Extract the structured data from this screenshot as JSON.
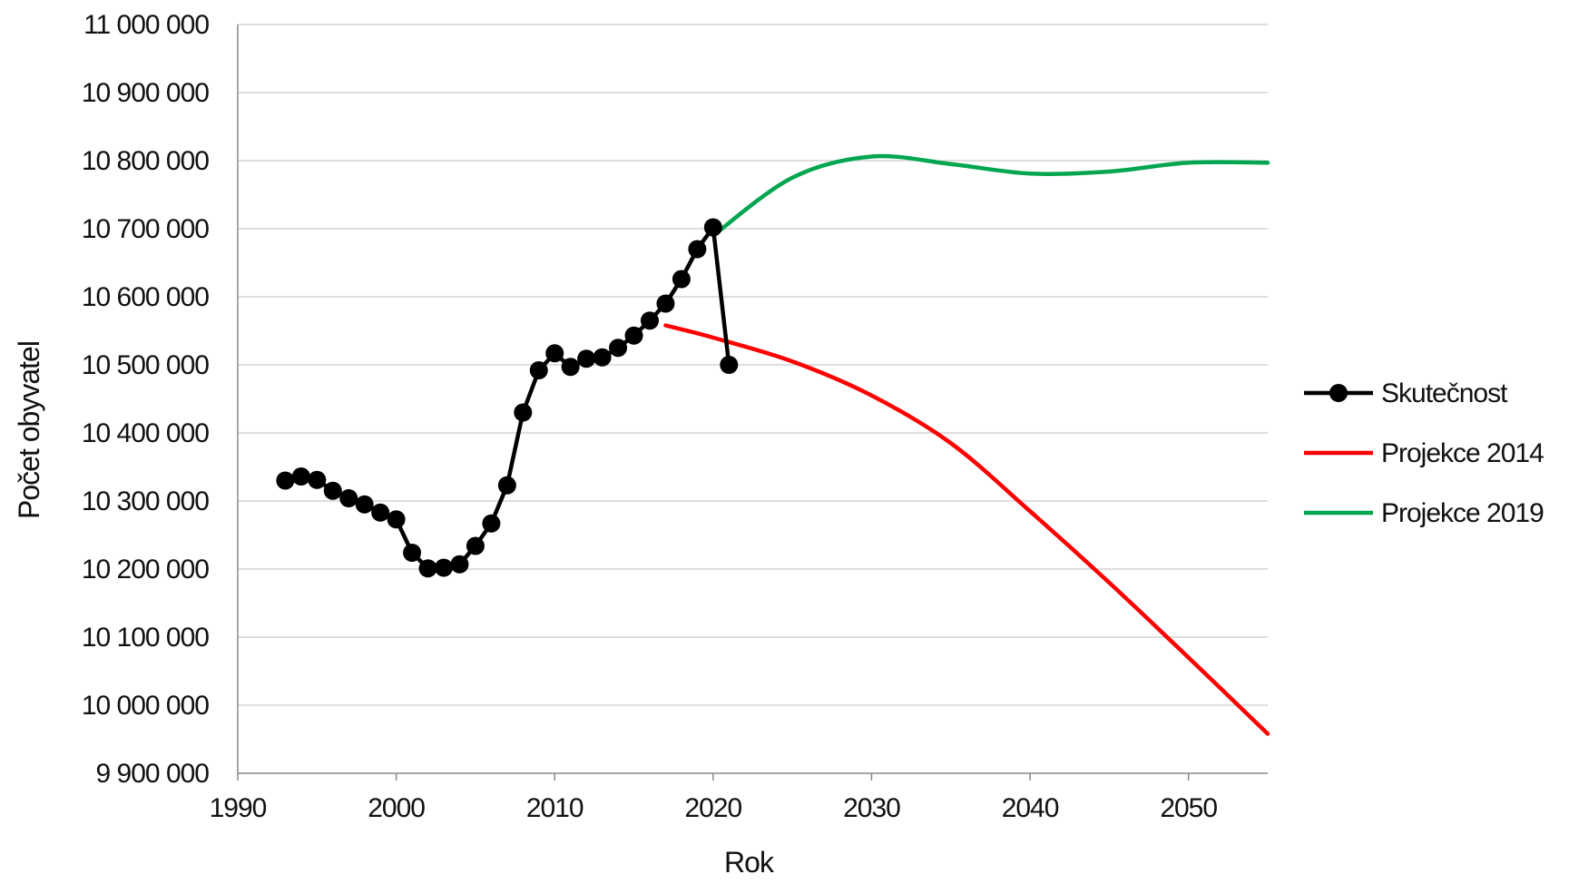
{
  "chart_data": {
    "type": "line",
    "title": "",
    "xlabel": "Rok",
    "ylabel": "Počet obyvatel",
    "xlim": [
      1990,
      2055
    ],
    "ylim": [
      9900000,
      11000000
    ],
    "x_ticks": [
      "1990",
      "2000",
      "2010",
      "2020",
      "2030",
      "2040",
      "2050"
    ],
    "y_ticks": [
      "9 900 000",
      "10 000 000",
      "10 100 000",
      "10 200 000",
      "10 300 000",
      "10 400 000",
      "10 500 000",
      "10 600 000",
      "10 700 000",
      "10 800 000",
      "10 900 000",
      "11 000 000"
    ],
    "grid": true,
    "legend_position": "right",
    "series": [
      {
        "name": "Skutečnost",
        "color": "#000000",
        "markers": true,
        "smooth": false,
        "points": [
          [
            1993,
            10330000
          ],
          [
            1994,
            10336000
          ],
          [
            1995,
            10331000
          ],
          [
            1996,
            10315000
          ],
          [
            1997,
            10304000
          ],
          [
            1998,
            10295000
          ],
          [
            1999,
            10283000
          ],
          [
            2000,
            10273000
          ],
          [
            2001,
            10224000
          ],
          [
            2002,
            10201000
          ],
          [
            2003,
            10202000
          ],
          [
            2004,
            10207000
          ],
          [
            2005,
            10234000
          ],
          [
            2006,
            10267000
          ],
          [
            2007,
            10323000
          ],
          [
            2008,
            10430000
          ],
          [
            2009,
            10492000
          ],
          [
            2010,
            10517000
          ],
          [
            2011,
            10497000
          ],
          [
            2012,
            10509000
          ],
          [
            2013,
            10511000
          ],
          [
            2014,
            10525000
          ],
          [
            2015,
            10543000
          ],
          [
            2016,
            10565000
          ],
          [
            2017,
            10590000
          ],
          [
            2018,
            10626000
          ],
          [
            2019,
            10670000
          ],
          [
            2020,
            10702000
          ],
          [
            2021,
            10500000
          ]
        ]
      },
      {
        "name": "Projekce 2014",
        "color": "#ff0000",
        "markers": false,
        "smooth": true,
        "points": [
          [
            2017,
            10558000
          ],
          [
            2020,
            10540000
          ],
          [
            2025,
            10505000
          ],
          [
            2030,
            10455000
          ],
          [
            2035,
            10385000
          ],
          [
            2040,
            10285000
          ],
          [
            2045,
            10180000
          ],
          [
            2050,
            10070000
          ],
          [
            2055,
            9958000
          ]
        ]
      },
      {
        "name": "Projekce 2019",
        "color": "#00a550",
        "markers": false,
        "smooth": true,
        "points": [
          [
            2020,
            10690000
          ],
          [
            2025,
            10775000
          ],
          [
            2030,
            10806000
          ],
          [
            2035,
            10795000
          ],
          [
            2040,
            10781000
          ],
          [
            2045,
            10784000
          ],
          [
            2050,
            10797000
          ],
          [
            2055,
            10797000
          ]
        ]
      }
    ]
  }
}
